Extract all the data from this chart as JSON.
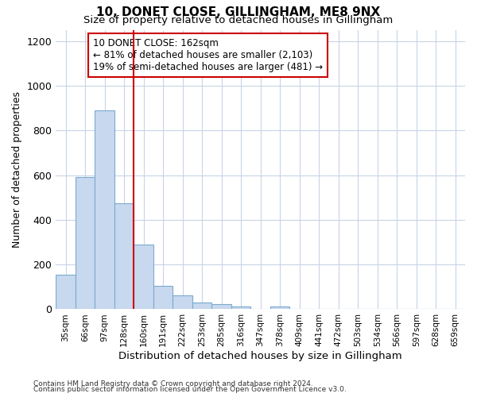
{
  "title1": "10, DONET CLOSE, GILLINGHAM, ME8 9NX",
  "title2": "Size of property relative to detached houses in Gillingham",
  "xlabel": "Distribution of detached houses by size in Gillingham",
  "ylabel": "Number of detached properties",
  "categories": [
    "35sqm",
    "66sqm",
    "97sqm",
    "128sqm",
    "160sqm",
    "191sqm",
    "222sqm",
    "253sqm",
    "285sqm",
    "316sqm",
    "347sqm",
    "378sqm",
    "409sqm",
    "441sqm",
    "472sqm",
    "503sqm",
    "534sqm",
    "566sqm",
    "597sqm",
    "628sqm",
    "659sqm"
  ],
  "values": [
    155,
    590,
    890,
    475,
    290,
    105,
    63,
    30,
    22,
    14,
    0,
    13,
    0,
    0,
    0,
    0,
    0,
    0,
    0,
    0,
    0
  ],
  "bar_color": "#c8d8ee",
  "bar_edge_color": "#7aaad0",
  "vline_color": "#cc0000",
  "vline_index": 4,
  "annotation_line1": "10 DONET CLOSE: 162sqm",
  "annotation_line2": "← 81% of detached houses are smaller (2,103)",
  "annotation_line3": "19% of semi-detached houses are larger (481) →",
  "annotation_box_color": "#ffffff",
  "annotation_box_edge": "#cc0000",
  "ylim": [
    0,
    1250
  ],
  "yticks": [
    0,
    200,
    400,
    600,
    800,
    1000,
    1200
  ],
  "footer1": "Contains HM Land Registry data © Crown copyright and database right 2024.",
  "footer2": "Contains public sector information licensed under the Open Government Licence v3.0.",
  "bg_color": "#ffffff",
  "plot_bg_color": "#ffffff"
}
